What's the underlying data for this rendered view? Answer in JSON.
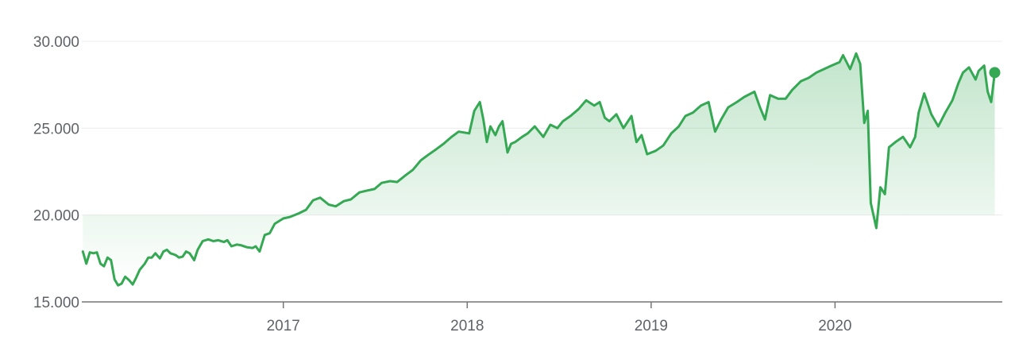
{
  "colors": {
    "line": "#34a853",
    "fill_top": "#34a853",
    "grid": "#ececec",
    "axis": "#757575",
    "text": "#5f6368"
  },
  "chart_data": {
    "type": "area",
    "title": "",
    "xlabel": "",
    "ylabel": "",
    "ylim": [
      15000,
      30000
    ],
    "xlim": [
      "2015-11-28",
      "2020-11-28"
    ],
    "y_ticks": [
      {
        "value": 15000,
        "label": "15.000"
      },
      {
        "value": 20000,
        "label": "20.000"
      },
      {
        "value": 25000,
        "label": "25.000"
      },
      {
        "value": 30000,
        "label": "30.000"
      }
    ],
    "x_ticks": [
      {
        "value": "2017-01-01",
        "label": "2017"
      },
      {
        "value": "2018-01-01",
        "label": "2018"
      },
      {
        "value": "2019-01-01",
        "label": "2019"
      },
      {
        "value": "2020-01-01",
        "label": "2020"
      }
    ],
    "grid": true,
    "end_marker": true,
    "series": [
      {
        "x": [
          "2015-11-30",
          "2015-12-07",
          "2015-12-14",
          "2015-12-21",
          "2015-12-28",
          "2016-01-04",
          "2016-01-11",
          "2016-01-18",
          "2016-01-25",
          "2016-02-01",
          "2016-02-08",
          "2016-02-15",
          "2016-02-22",
          "2016-03-01",
          "2016-03-08",
          "2016-03-15",
          "2016-03-22",
          "2016-04-01",
          "2016-04-08",
          "2016-04-15",
          "2016-04-22",
          "2016-05-01",
          "2016-05-08",
          "2016-05-15",
          "2016-05-22",
          "2016-06-01",
          "2016-06-08",
          "2016-06-15",
          "2016-06-22",
          "2016-06-29",
          "2016-07-08",
          "2016-07-15",
          "2016-07-25",
          "2016-08-05",
          "2016-08-15",
          "2016-08-25",
          "2016-09-05",
          "2016-09-12",
          "2016-09-20",
          "2016-10-01",
          "2016-10-10",
          "2016-10-20",
          "2016-11-01",
          "2016-11-07",
          "2016-11-15",
          "2016-11-25",
          "2016-12-05",
          "2016-12-15",
          "2017-01-01",
          "2017-01-15",
          "2017-02-01",
          "2017-02-15",
          "2017-03-01",
          "2017-03-15",
          "2017-04-01",
          "2017-04-15",
          "2017-05-01",
          "2017-05-15",
          "2017-06-01",
          "2017-06-15",
          "2017-07-01",
          "2017-07-15",
          "2017-08-01",
          "2017-08-15",
          "2017-09-01",
          "2017-09-15",
          "2017-10-01",
          "2017-10-15",
          "2017-11-01",
          "2017-11-15",
          "2017-12-01",
          "2017-12-15",
          "2018-01-05",
          "2018-01-15",
          "2018-01-26",
          "2018-02-02",
          "2018-02-09",
          "2018-02-16",
          "2018-02-26",
          "2018-03-05",
          "2018-03-12",
          "2018-03-22",
          "2018-03-29",
          "2018-04-06",
          "2018-04-20",
          "2018-05-01",
          "2018-05-15",
          "2018-06-01",
          "2018-06-15",
          "2018-06-29",
          "2018-07-10",
          "2018-07-25",
          "2018-08-10",
          "2018-08-25",
          "2018-09-10",
          "2018-09-21",
          "2018-10-01",
          "2018-10-10",
          "2018-10-24",
          "2018-11-07",
          "2018-11-23",
          "2018-12-03",
          "2018-12-13",
          "2018-12-24",
          "2019-01-10",
          "2019-01-25",
          "2019-02-10",
          "2019-02-25",
          "2019-03-10",
          "2019-03-25",
          "2019-04-10",
          "2019-04-25",
          "2019-05-08",
          "2019-05-20",
          "2019-06-03",
          "2019-06-20",
          "2019-07-05",
          "2019-07-25",
          "2019-08-05",
          "2019-08-15",
          "2019-08-25",
          "2019-09-10",
          "2019-09-25",
          "2019-10-08",
          "2019-10-25",
          "2019-11-10",
          "2019-11-25",
          "2019-12-10",
          "2019-12-25",
          "2020-01-10",
          "2020-01-17",
          "2020-01-31",
          "2020-02-12",
          "2020-02-20",
          "2020-02-28",
          "2020-03-06",
          "2020-03-12",
          "2020-03-23",
          "2020-03-31",
          "2020-04-09",
          "2020-04-17",
          "2020-04-30",
          "2020-05-15",
          "2020-05-29",
          "2020-06-08",
          "2020-06-15",
          "2020-06-26",
          "2020-07-10",
          "2020-07-24",
          "2020-08-07",
          "2020-08-21",
          "2020-09-02",
          "2020-09-11",
          "2020-09-23",
          "2020-10-06",
          "2020-10-12",
          "2020-10-23",
          "2020-10-30",
          "2020-11-06",
          "2020-11-13"
        ],
        "values": [
          17900,
          17200,
          17850,
          17800,
          17850,
          17200,
          17050,
          17550,
          17400,
          16300,
          15950,
          16050,
          16450,
          16250,
          16000,
          16400,
          16850,
          17200,
          17550,
          17550,
          17800,
          17500,
          17900,
          18000,
          17800,
          17700,
          17550,
          17600,
          17900,
          17800,
          17400,
          18000,
          18500,
          18600,
          18500,
          18550,
          18450,
          18550,
          18200,
          18300,
          18250,
          18150,
          18100,
          18200,
          17900,
          18850,
          18950,
          19500,
          19800,
          19900,
          20100,
          20300,
          20850,
          21000,
          20600,
          20500,
          20800,
          20900,
          21300,
          21400,
          21500,
          21850,
          21950,
          21900,
          22300,
          22600,
          23150,
          23450,
          23800,
          24100,
          24500,
          24800,
          24700,
          26000,
          26500,
          25500,
          24200,
          25100,
          24600,
          25100,
          25400,
          23600,
          24100,
          24200,
          24500,
          24700,
          25100,
          24500,
          25200,
          25000,
          25400,
          25700,
          26100,
          26600,
          26300,
          26500,
          25600,
          25400,
          25800,
          25000,
          25700,
          24200,
          24600,
          23500,
          23700,
          24000,
          24700,
          25100,
          25700,
          25900,
          26300,
          26500,
          24800,
          25500,
          26200,
          26500,
          26800,
          27100,
          26200,
          25500,
          26900,
          26700,
          26700,
          27200,
          27700,
          27900,
          28200,
          28400,
          28600,
          28800,
          29200,
          28400,
          29300,
          28700,
          25300,
          26000,
          20700,
          19250,
          21600,
          21200,
          23900,
          24200,
          24500,
          23900,
          24500,
          25900,
          27000,
          25800,
          25100,
          25900,
          26600,
          27600,
          28200,
          28500,
          27800,
          28300,
          28600,
          27100,
          26500,
          28200
        ]
      }
    ]
  }
}
